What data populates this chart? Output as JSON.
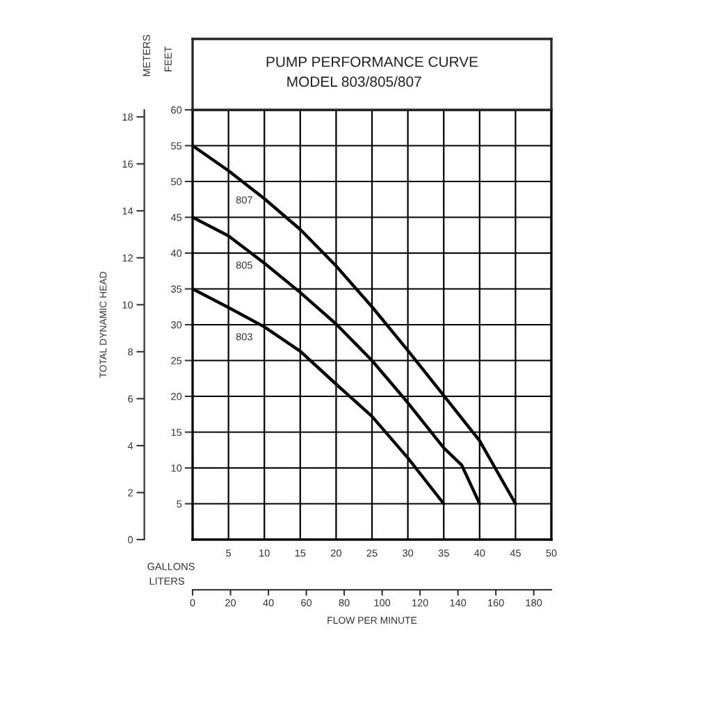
{
  "chart_data": {
    "type": "line",
    "title": "PUMP PERFORMANCE CURVE",
    "subtitle": "MODEL 803/805/807",
    "xlabel": "FLOW PER MINUTE",
    "ylabel": "TOTAL DYNAMIC HEAD",
    "xlim": [
      0,
      50
    ],
    "xticks": [
      5,
      10,
      15,
      20,
      25,
      30,
      35,
      40,
      45,
      50
    ],
    "ylim": [
      0,
      18.3
    ],
    "yticks": [
      0,
      2,
      4,
      6,
      8,
      10,
      12,
      14,
      16,
      18
    ],
    "y2lim": [
      0,
      60
    ],
    "y2ticks": [
      5,
      10,
      15,
      20,
      25,
      30,
      35,
      40,
      45,
      50,
      55,
      60
    ],
    "x2lim": [
      0,
      189.3
    ],
    "x2ticks": [
      0,
      20,
      40,
      60,
      80,
      100,
      120,
      140,
      160,
      180
    ],
    "grid": true,
    "legend": false,
    "marker": "none",
    "line_style": "solid",
    "series": [
      {
        "name": "807",
        "axis": "y2",
        "color": "#000000",
        "x": [
          0,
          5,
          10,
          15,
          20,
          25,
          30,
          35,
          40,
          45
        ],
        "values": [
          55,
          51.5,
          47.6,
          43.3,
          38.2,
          32.5,
          26.4,
          20.1,
          13.8,
          5
        ]
      },
      {
        "name": "805",
        "axis": "y2",
        "color": "#000000",
        "x": [
          0,
          5,
          10,
          15,
          20,
          25,
          30,
          35,
          37.5,
          40
        ],
        "values": [
          45,
          42.4,
          38.6,
          34.5,
          30.1,
          25,
          19.1,
          12.8,
          10.4,
          5
        ]
      },
      {
        "name": "803",
        "axis": "y2",
        "color": "#000000",
        "x": [
          0,
          5,
          10,
          15,
          20,
          25,
          30,
          35
        ],
        "values": [
          35,
          32.4,
          29.7,
          26.3,
          21.7,
          17.2,
          11.4,
          5
        ]
      }
    ],
    "annotations": [
      "METERS",
      "FEET",
      "GALLONS",
      "LITERS"
    ]
  }
}
